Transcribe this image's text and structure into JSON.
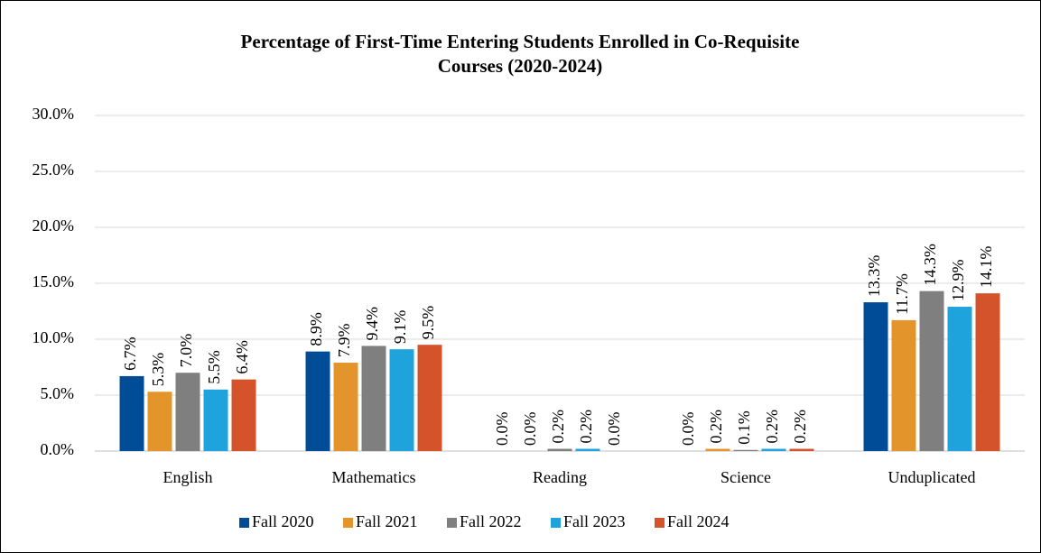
{
  "chart_data": {
    "type": "bar",
    "title": [
      "Percentage of First-Time Entering Students Enrolled in Co-Requisite",
      "Courses (2020-2024)"
    ],
    "categories": [
      "English",
      "Mathematics",
      "Reading",
      "Science",
      "Unduplicated"
    ],
    "series": [
      {
        "name": "Fall 2020",
        "color": "#004c97",
        "values": [
          6.7,
          8.9,
          0.0,
          0.0,
          13.3
        ],
        "value_labels": [
          "6.7%",
          "8.9%",
          "0.0%",
          "0.0%",
          "13.3%"
        ]
      },
      {
        "name": "Fall 2021",
        "color": "#e3942b",
        "values": [
          5.3,
          7.9,
          0.0,
          0.2,
          11.7
        ],
        "value_labels": [
          "5.3%",
          "7.9%",
          "0.0%",
          "0.2%",
          "11.7%"
        ]
      },
      {
        "name": "Fall 2022",
        "color": "#7f7f7f",
        "values": [
          7.0,
          9.4,
          0.2,
          0.1,
          14.3
        ],
        "value_labels": [
          "7.0%",
          "9.4%",
          "0.2%",
          "0.1%",
          "14.3%"
        ]
      },
      {
        "name": "Fall 2023",
        "color": "#1fa3dc",
        "values": [
          5.5,
          9.1,
          0.2,
          0.2,
          12.9
        ],
        "value_labels": [
          "5.5%",
          "9.1%",
          "0.2%",
          "0.2%",
          "12.9%"
        ]
      },
      {
        "name": "Fall 2024",
        "color": "#d4532a",
        "values": [
          6.4,
          9.5,
          0.0,
          0.2,
          14.1
        ],
        "value_labels": [
          "6.4%",
          "9.5%",
          "0.0%",
          "0.2%",
          "14.1%"
        ]
      }
    ],
    "ylim": [
      0,
      30
    ],
    "yticks": [
      {
        "value": 0,
        "label": "0.0%"
      },
      {
        "value": 5,
        "label": "5.0%"
      },
      {
        "value": 10,
        "label": "10.0%"
      },
      {
        "value": 15,
        "label": "15.0%"
      },
      {
        "value": 20,
        "label": "20.0%"
      },
      {
        "value": 25,
        "label": "25.0%"
      },
      {
        "value": 30,
        "label": "30.0%"
      }
    ],
    "grid": true,
    "legend": "bottom"
  }
}
